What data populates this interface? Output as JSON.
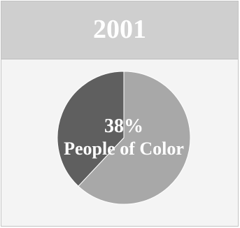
{
  "chart_data": {
    "type": "pie",
    "title": "2001",
    "slices": [
      {
        "label": "People of Color",
        "value": 38,
        "color": "#5f5f5f"
      },
      {
        "label": "",
        "value": 62,
        "color": "#a8a8a8"
      }
    ],
    "center_label": {
      "value_text": "38%",
      "name_text": "People of Color"
    },
    "start_angle_deg": 0,
    "direction": "counterclockwise"
  },
  "colors": {
    "header_bg": "#cfcfcf",
    "panel_bg": "#f4f4f4"
  }
}
